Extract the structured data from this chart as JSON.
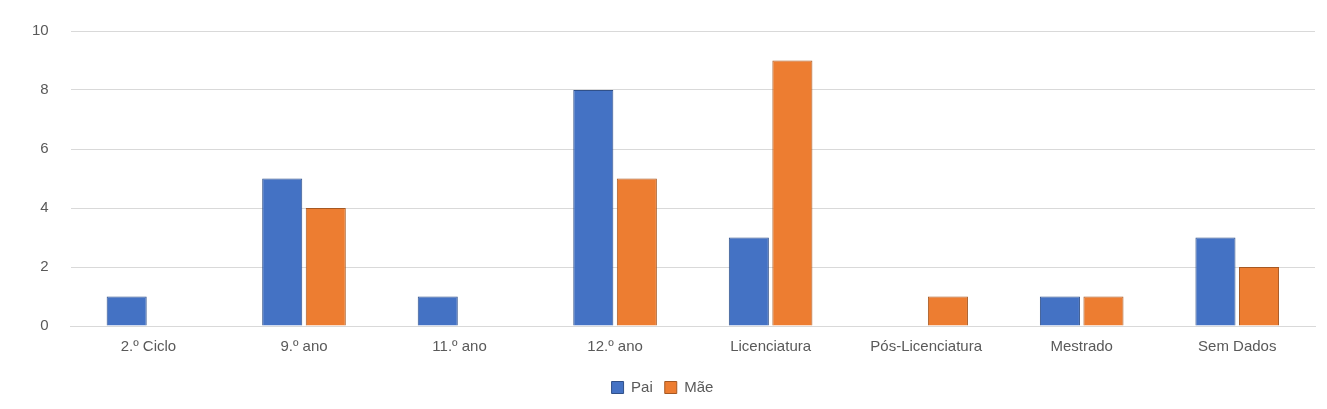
{
  "chart_data": {
    "type": "bar",
    "categories": [
      "2.º Ciclo",
      "9.º ano",
      "11.º ano",
      "12.º ano",
      "Licenciatura",
      "Pós-Licenciatura",
      "Mestrado",
      "Sem Dados"
    ],
    "series": [
      {
        "name": "Pai",
        "color": "#4472c4",
        "values": [
          1,
          5,
          1,
          8,
          3,
          0,
          1,
          3
        ]
      },
      {
        "name": "Mãe",
        "color": "#ed7d31",
        "values": [
          0,
          4,
          0,
          5,
          9,
          1,
          1,
          2
        ]
      }
    ],
    "ylim": [
      0,
      10
    ],
    "yticks": [
      0,
      2,
      4,
      6,
      8,
      10
    ],
    "grid": "y",
    "legend": "bottom"
  }
}
